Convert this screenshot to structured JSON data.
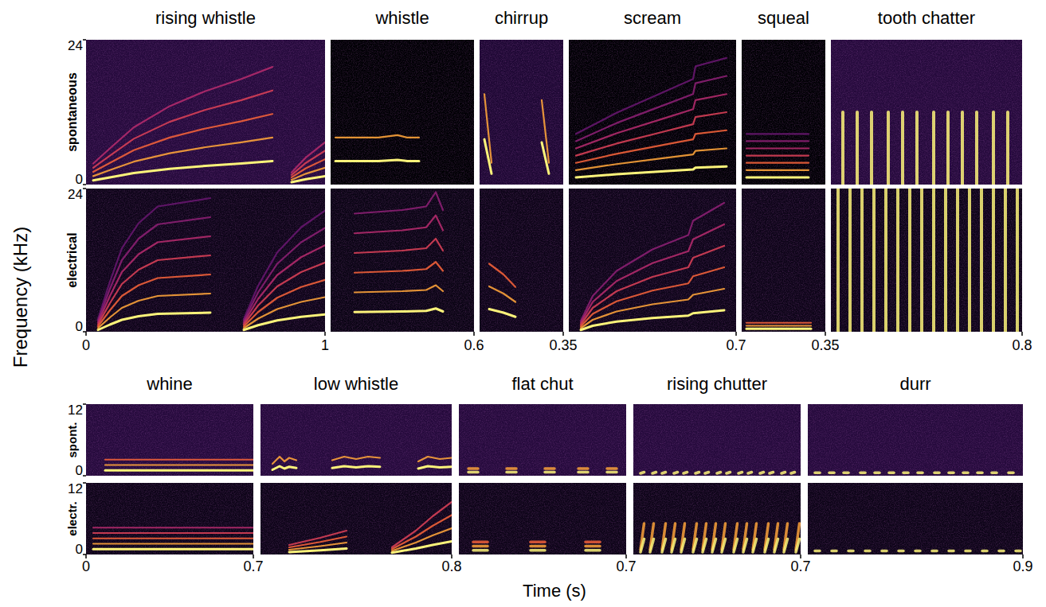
{
  "chart_data": {
    "type": "spectrogram",
    "y_label": "Frequency (kHz)",
    "x_label": "Time (s)",
    "groups": [
      {
        "row_labels": [
          "spontaneous",
          "electrical"
        ],
        "ylim": [
          0,
          24
        ],
        "yticks": [
          0,
          24
        ],
        "panels": [
          {
            "title": "rising whistle",
            "xlim": [
              0,
              1
            ],
            "cells": [
              {
                "color": "#250a3c",
                "harmonics": 5,
                "contours": [
                  {
                    "t": [
                      0.03,
                      0.1,
                      0.2,
                      0.35,
                      0.5,
                      0.65,
                      0.78
                    ],
                    "f": [
                      0.7,
                      1.2,
                      1.9,
                      2.6,
                      3.1,
                      3.5,
                      3.9
                    ]
                  },
                  {
                    "t": [
                      0.86,
                      0.92,
                      1.0
                    ],
                    "f": [
                      0.4,
                      0.9,
                      1.4
                    ]
                  }
                ]
              },
              {
                "color": "#0d0418",
                "harmonics": 7,
                "contours": [
                  {
                    "t": [
                      0.05,
                      0.1,
                      0.15,
                      0.22,
                      0.3,
                      0.52
                    ],
                    "f": [
                      0.3,
                      1.2,
                      2.0,
                      2.6,
                      3.0,
                      3.2
                    ]
                  },
                  {
                    "t": [
                      0.66,
                      0.72,
                      0.8,
                      0.9,
                      1.0
                    ],
                    "f": [
                      0.3,
                      1.1,
                      1.9,
                      2.5,
                      2.9
                    ]
                  }
                ]
              }
            ]
          },
          {
            "title": "whistle",
            "xlim": [
              0,
              0.6
            ],
            "cells": [
              {
                "color": "#000004",
                "harmonics": 2,
                "contours": [
                  {
                    "t": [
                      0.02,
                      0.2,
                      0.28,
                      0.32,
                      0.37
                    ],
                    "f": [
                      3.9,
                      3.9,
                      4.1,
                      3.9,
                      3.9
                    ]
                  }
                ]
              },
              {
                "color": "#0a0414",
                "harmonics": 6,
                "contours": [
                  {
                    "t": [
                      0.1,
                      0.3,
                      0.4,
                      0.44,
                      0.47
                    ],
                    "f": [
                      3.3,
                      3.4,
                      3.5,
                      3.9,
                      3.4
                    ]
                  }
                ]
              }
            ]
          },
          {
            "title": "chirrup",
            "xlim": [
              0,
              0.35
            ],
            "cells": [
              {
                "color": "#1e0834",
                "harmonics": 2,
                "contours": [
                  {
                    "t": [
                      0.02,
                      0.05
                    ],
                    "f": [
                      7.5,
                      1.8
                    ]
                  },
                  {
                    "t": [
                      0.26,
                      0.29
                    ],
                    "f": [
                      7,
                      1.8
                    ]
                  }
                ]
              },
              {
                "color": "#0d0418",
                "harmonics": 3,
                "contours": [
                  {
                    "t": [
                      0.04,
                      0.1,
                      0.15
                    ],
                    "f": [
                      3.8,
                      3.2,
                      2.5
                    ]
                  }
                ]
              }
            ]
          },
          {
            "title": "scream",
            "xlim": [
              0,
              0.7
            ],
            "cells": [
              {
                "color": "#000004",
                "harmonics": 7,
                "contours": [
                  {
                    "t": [
                      0.03,
                      0.2,
                      0.4,
                      0.52,
                      0.53,
                      0.66
                    ],
                    "f": [
                      1.2,
                      1.7,
                      2.2,
                      2.5,
                      2.8,
                      3.0
                    ]
                  }
                ]
              },
              {
                "color": "#0d0418",
                "harmonics": 6,
                "contours": [
                  {
                    "t": [
                      0.05,
                      0.1,
                      0.2,
                      0.35,
                      0.5,
                      0.52,
                      0.65
                    ],
                    "f": [
                      0.3,
                      1.0,
                      1.7,
                      2.3,
                      2.7,
                      3.1,
                      3.6
                    ]
                  }
                ]
              }
            ]
          },
          {
            "title": "squeal",
            "xlim": [
              0,
              0.35
            ],
            "cells": [
              {
                "color": "#000004",
                "harmonics": 7,
                "contours": [
                  {
                    "t": [
                      0.02,
                      0.28
                    ],
                    "f": [
                      1.2,
                      1.2
                    ]
                  }
                ]
              },
              {
                "color": "#0d0418",
                "harmonics": 3,
                "contours": [
                  {
                    "t": [
                      0.02,
                      0.29
                    ],
                    "f": [
                      0.5,
                      0.5
                    ]
                  }
                ]
              }
            ]
          },
          {
            "title": "tooth chatter",
            "xlim": [
              0,
              0.8
            ],
            "cells": [
              {
                "color": "#250a3c",
                "harmonics": 1,
                "pulses": {
                  "t": [
                    0.05,
                    0.11,
                    0.17,
                    0.24,
                    0.3,
                    0.36,
                    0.43,
                    0.49,
                    0.55,
                    0.61,
                    0.68,
                    0.74
                  ],
                  "length": 0,
                  "f": [
                    0,
                    12
                  ]
                }
              },
              {
                "color": "#0d0418",
                "harmonics": 1,
                "pulses": {
                  "t": [
                    0.03,
                    0.08,
                    0.13,
                    0.18,
                    0.23,
                    0.28,
                    0.33,
                    0.38,
                    0.43,
                    0.48,
                    0.53,
                    0.58,
                    0.63,
                    0.68,
                    0.73,
                    0.78
                  ],
                  "length": 0,
                  "f": [
                    0,
                    24
                  ]
                }
              }
            ]
          }
        ]
      },
      {
        "row_labels": [
          "spont.",
          "electr."
        ],
        "ylim": [
          0,
          12
        ],
        "yticks": [
          0,
          12
        ],
        "panels": [
          {
            "title": "whine",
            "xlim": [
              0,
              0.7
            ],
            "cells": [
              {
                "color": "#250a3c",
                "harmonics": 3,
                "contours": [
                  {
                    "t": [
                      0.08,
                      0.7
                    ],
                    "f": [
                      0.9,
                      0.9
                    ]
                  }
                ]
              },
              {
                "color": "#0d0418",
                "harmonics": 5,
                "contours": [
                  {
                    "t": [
                      0.03,
                      0.7
                    ],
                    "f": [
                      0.9,
                      0.9
                    ]
                  }
                ]
              }
            ]
          },
          {
            "title": "low whistle",
            "xlim": [
              0,
              0.8
            ],
            "cells": [
              {
                "color": "#250a3c",
                "harmonics": 2,
                "contours": [
                  {
                    "t": [
                      0.05,
                      0.08,
                      0.1,
                      0.12,
                      0.15
                    ],
                    "f": [
                      1.0,
                      1.6,
                      1.2,
                      1.5,
                      1.3
                    ]
                  },
                  {
                    "t": [
                      0.3,
                      0.35,
                      0.4,
                      0.45,
                      0.5
                    ],
                    "f": [
                      1.3,
                      1.6,
                      1.4,
                      1.6,
                      1.5
                    ]
                  },
                  {
                    "t": [
                      0.66,
                      0.7,
                      0.75,
                      0.8
                    ],
                    "f": [
                      1.2,
                      1.6,
                      1.4,
                      1.5
                    ]
                  }
                ]
              },
              {
                "color": "#0d0418",
                "harmonics": 4,
                "contours": [
                  {
                    "t": [
                      0.12,
                      0.25,
                      0.36
                    ],
                    "f": [
                      0.4,
                      0.7,
                      1.0
                    ]
                  },
                  {
                    "t": [
                      0.55,
                      0.65,
                      0.72,
                      0.8
                    ],
                    "f": [
                      0.3,
                      1.0,
                      1.6,
                      2.2
                    ]
                  }
                ]
              }
            ]
          },
          {
            "title": "flat chut",
            "xlim": [
              0,
              0.7
            ],
            "cells": [
              {
                "color": "#250a3c",
                "harmonics": 2,
                "pulses": {
                  "t": [
                    0.04,
                    0.2,
                    0.36,
                    0.5,
                    0.62
                  ],
                  "length": 0.04,
                  "f": [
                    0.6,
                    0.6
                  ]
                }
              },
              {
                "color": "#0d0418",
                "harmonics": 3,
                "pulses": {
                  "t": [
                    0.06,
                    0.3,
                    0.53
                  ],
                  "length": 0.06,
                  "f": [
                    0.7,
                    0.7
                  ]
                }
              }
            ]
          },
          {
            "title": "rising chutter",
            "xlim": [
              0,
              0.7
            ],
            "cells": [
              {
                "color": "#250a3c",
                "harmonics": 1,
                "pulses": {
                  "t": [
                    0.03,
                    0.08,
                    0.12,
                    0.17,
                    0.21,
                    0.26,
                    0.3,
                    0.35,
                    0.39,
                    0.44,
                    0.48,
                    0.53,
                    0.57,
                    0.62,
                    0.66
                  ],
                  "length": 0.015,
                  "f": [
                    0.4,
                    0.6
                  ]
                }
              },
              {
                "color": "#0d0418",
                "harmonics": 2,
                "pulses": {
                  "t": [
                    0.03,
                    0.07,
                    0.12,
                    0.16,
                    0.2,
                    0.25,
                    0.29,
                    0.33,
                    0.37,
                    0.42,
                    0.46,
                    0.5,
                    0.55,
                    0.59,
                    0.63,
                    0.68
                  ],
                  "length": 0.015,
                  "f": [
                    0.4,
                    2.6
                  ]
                }
              }
            ]
          },
          {
            "title": "durr",
            "xlim": [
              0,
              0.9
            ],
            "cells": [
              {
                "color": "#250a3c",
                "harmonics": 1,
                "pulses": {
                  "t": [
                    0.03,
                    0.09,
                    0.15,
                    0.22,
                    0.28,
                    0.34,
                    0.4,
                    0.46,
                    0.53,
                    0.59,
                    0.65,
                    0.71,
                    0.77,
                    0.84
                  ],
                  "length": 0.02,
                  "f": [
                    0.5,
                    0.5
                  ]
                }
              },
              {
                "color": "#0d0418",
                "harmonics": 1,
                "pulses": {
                  "t": [
                    0.03,
                    0.1,
                    0.17,
                    0.24,
                    0.31,
                    0.38,
                    0.45,
                    0.52,
                    0.59,
                    0.66,
                    0.73,
                    0.8,
                    0.87
                  ],
                  "length": 0.02,
                  "f": [
                    0.6,
                    0.6
                  ]
                }
              }
            ]
          }
        ]
      }
    ]
  }
}
